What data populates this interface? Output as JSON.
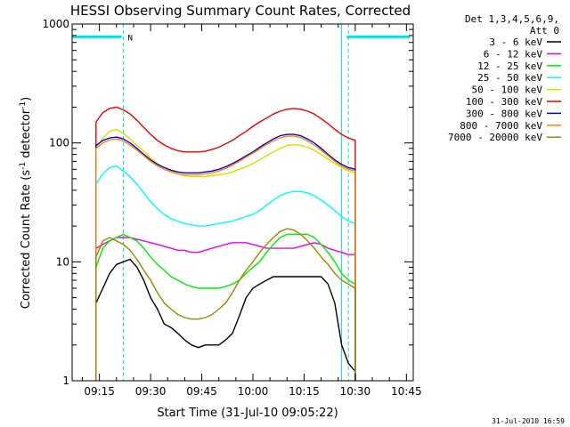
{
  "chart_data": {
    "type": "line",
    "title": "HESSI Observing Summary Count Rates, Corrected",
    "xlabel": "Start Time (31-Jul-10 09:05:22)",
    "ylabel_main": "Corrected Count Rate (s",
    "ylabel_sup1": "-1",
    "ylabel_mid": " detector",
    "ylabel_sup2": "-1",
    "ylabel_end": ")",
    "y_scale": "log",
    "ylim": [
      1,
      1000
    ],
    "xlim_min": [
      547,
      647
    ],
    "x_ticks": [
      {
        "label": "09:15",
        "min": 555
      },
      {
        "label": "09:30",
        "min": 570
      },
      {
        "label": "09:45",
        "min": 585
      },
      {
        "label": "10:00",
        "min": 600
      },
      {
        "label": "10:15",
        "min": 615
      },
      {
        "label": "10:30",
        "min": 630
      },
      {
        "label": "10:45",
        "min": 645
      }
    ],
    "y_ticks": [
      {
        "label": "1",
        "value": 1
      },
      {
        "label": "10",
        "value": 10
      },
      {
        "label": "100",
        "value": 100
      },
      {
        "label": "1000",
        "value": 1000
      }
    ],
    "legend_header": [
      "Det 1,3,4,5,6,9,",
      "Att 0"
    ],
    "legend_placement": "right",
    "night_marker": "N",
    "timestamp": "31-Jul-2010 16:59",
    "colors": {
      "axis": "#000000",
      "annotation": "#00e5e5"
    },
    "annotations": {
      "night_start_min": 562,
      "night_end_min": 628,
      "data_gap_start_min": 626,
      "cyan_bar_segments": [
        [
          547,
          561.5
        ],
        [
          627.5,
          646
        ]
      ],
      "cyan_bar_level": 780
    },
    "data_time_min": [
      554,
      556,
      558,
      560,
      562,
      564,
      566,
      568,
      570,
      572,
      574,
      576,
      578,
      580,
      582,
      584,
      586,
      588,
      590,
      592,
      594,
      596,
      598,
      600,
      602,
      604,
      606,
      608,
      610,
      612,
      614,
      616,
      618,
      620,
      622,
      624,
      626,
      628,
      630
    ],
    "series": [
      {
        "name": "3 - 6 keV",
        "color": "#000000",
        "values": [
          4.5,
          6,
          8,
          9.5,
          10,
          10.5,
          9,
          7,
          5,
          4,
          3,
          2.8,
          2.5,
          2.2,
          2.0,
          1.9,
          2.0,
          2.0,
          2.0,
          2.2,
          2.5,
          3.5,
          5,
          6,
          6.5,
          7,
          7.5,
          7.5,
          7.5,
          7.5,
          7.5,
          7.5,
          7.5,
          7.5,
          6.5,
          4.5,
          2.0,
          1.4,
          1.2
        ]
      },
      {
        "name": "6 - 12 keV",
        "color": "#ee00ee",
        "values": [
          13,
          14,
          15,
          16,
          16,
          16,
          15.5,
          15,
          14.5,
          14,
          13.5,
          13,
          12.5,
          12.5,
          12,
          12,
          12.5,
          13,
          13.5,
          14,
          14.5,
          14.5,
          14.5,
          14,
          13.5,
          13,
          13,
          13,
          13,
          13,
          13.5,
          14,
          14.5,
          14,
          13,
          12.5,
          12,
          11.5,
          11.5
        ]
      },
      {
        "name": "12 - 25 keV",
        "color": "#00ee00",
        "values": [
          9,
          13,
          15,
          16,
          17,
          16,
          15,
          13,
          11,
          9.5,
          8.5,
          7.5,
          7,
          6.5,
          6.2,
          6,
          6,
          6,
          6,
          6.2,
          6.5,
          7,
          8,
          9,
          10,
          12,
          14,
          16,
          17,
          17,
          17,
          17,
          16,
          14,
          12,
          10,
          8,
          7,
          6.5
        ]
      },
      {
        "name": "25 - 50 keV",
        "color": "#00ffff",
        "values": [
          45,
          55,
          62,
          64,
          58,
          52,
          45,
          38,
          32,
          28,
          25,
          23,
          22,
          21,
          20.5,
          20,
          20,
          20.5,
          21,
          21.5,
          22,
          23,
          24,
          25,
          27,
          30,
          33,
          36,
          38,
          39,
          39,
          38,
          36,
          33,
          30,
          27,
          24,
          22,
          21
        ]
      },
      {
        "name": "50 - 100 keV",
        "color": "#dddd00",
        "values": [
          90,
          110,
          125,
          130,
          120,
          108,
          95,
          85,
          75,
          67,
          62,
          58,
          55,
          53,
          52,
          52,
          52,
          53,
          54,
          55,
          57,
          60,
          63,
          67,
          72,
          78,
          84,
          90,
          95,
          97,
          95,
          92,
          87,
          80,
          73,
          67,
          62,
          58,
          56
        ]
      },
      {
        "name": "100 - 300 keV",
        "color": "#ee0000",
        "values": [
          150,
          180,
          195,
          200,
          190,
          175,
          155,
          135,
          118,
          105,
          96,
          90,
          86,
          84,
          84,
          84,
          85,
          88,
          92,
          98,
          105,
          115,
          125,
          138,
          150,
          162,
          175,
          185,
          192,
          195,
          192,
          185,
          175,
          160,
          145,
          130,
          118,
          110,
          105
        ]
      },
      {
        "name": "300 - 800 keV",
        "color": "#0000ee",
        "values": [
          95,
          105,
          110,
          112,
          108,
          100,
          90,
          80,
          72,
          66,
          62,
          59,
          57,
          56,
          56,
          56,
          57,
          58,
          60,
          63,
          67,
          72,
          78,
          84,
          92,
          100,
          108,
          115,
          118,
          118,
          115,
          108,
          100,
          90,
          80,
          72,
          66,
          62,
          60
        ]
      },
      {
        "name": "800 - 7000 keV",
        "color": "#ff8800",
        "values": [
          90,
          100,
          106,
          108,
          104,
          96,
          87,
          78,
          70,
          64,
          60,
          57,
          55,
          54,
          54,
          54,
          55,
          56,
          58,
          61,
          65,
          70,
          76,
          82,
          89,
          97,
          104,
          110,
          114,
          114,
          111,
          104,
          96,
          87,
          78,
          70,
          64,
          60,
          58
        ]
      },
      {
        "name": "7000 - 20000 keV",
        "color": "#998800",
        "values": [
          11,
          15,
          16,
          15,
          14,
          12.5,
          10.5,
          8.5,
          7,
          5.5,
          4.5,
          4,
          3.6,
          3.4,
          3.3,
          3.3,
          3.4,
          3.6,
          4,
          4.5,
          5.5,
          7,
          8.5,
          10,
          12,
          14,
          16,
          18,
          19,
          18.5,
          17,
          15,
          13,
          11,
          9.5,
          8,
          7,
          6.5,
          6
        ]
      }
    ]
  }
}
